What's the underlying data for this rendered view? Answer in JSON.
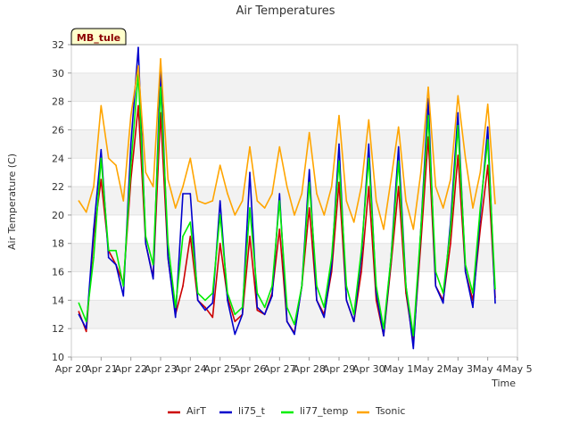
{
  "chart_data": {
    "type": "line",
    "title": "Air Temperatures",
    "xlabel": "Time",
    "ylabel": "Air Temperature (C)",
    "ylim": [
      10,
      32
    ],
    "xlim": [
      0,
      15
    ],
    "yticks": [
      10,
      12,
      14,
      16,
      18,
      20,
      22,
      24,
      26,
      28,
      30,
      32
    ],
    "xticks": [
      {
        "x": 0,
        "label": "Apr 20"
      },
      {
        "x": 1,
        "label": "Apr 21"
      },
      {
        "x": 2,
        "label": "Apr 22"
      },
      {
        "x": 3,
        "label": "Apr 23"
      },
      {
        "x": 4,
        "label": "Apr 24"
      },
      {
        "x": 5,
        "label": "Apr 25"
      },
      {
        "x": 6,
        "label": "Apr 26"
      },
      {
        "x": 7,
        "label": "Apr 27"
      },
      {
        "x": 8,
        "label": "Apr 28"
      },
      {
        "x": 9,
        "label": "Apr 29"
      },
      {
        "x": 10,
        "label": "Apr 30"
      },
      {
        "x": 11,
        "label": "May 1"
      },
      {
        "x": 12,
        "label": "May 2"
      },
      {
        "x": 13,
        "label": "May 3"
      },
      {
        "x": 14,
        "label": "May 4"
      },
      {
        "x": 15,
        "label": "May 5"
      }
    ],
    "grid": "horizontal bands",
    "legend_position": "bottom",
    "site_label": "MB_tule",
    "series": [
      {
        "name": "AirT",
        "color": "#cc0000",
        "x": [
          0.25,
          0.5,
          0.75,
          1.0,
          1.25,
          1.5,
          1.75,
          2.0,
          2.25,
          2.5,
          2.75,
          3.0,
          3.25,
          3.5,
          3.75,
          4.0,
          4.25,
          4.5,
          4.75,
          5.0,
          5.25,
          5.5,
          5.75,
          6.0,
          6.25,
          6.5,
          6.75,
          7.0,
          7.25,
          7.5,
          7.75,
          8.0,
          8.25,
          8.5,
          8.75,
          9.0,
          9.25,
          9.5,
          9.75,
          10.0,
          10.25,
          10.5,
          10.75,
          11.0,
          11.25,
          11.5,
          11.75,
          12.0,
          12.25,
          12.5,
          12.75,
          13.0,
          13.25,
          13.5,
          13.75,
          14.0,
          14.25
        ],
        "y": [
          13.2,
          11.8,
          18.5,
          22.5,
          17.5,
          16.5,
          15.2,
          22.5,
          27.7,
          18.0,
          15.6,
          27.2,
          17.0,
          13.0,
          15.0,
          18.5,
          14.0,
          13.5,
          12.8,
          18.0,
          14.2,
          12.5,
          13.0,
          18.5,
          13.3,
          13.0,
          14.5,
          19.0,
          12.5,
          11.7,
          15.0,
          20.5,
          14.0,
          13.0,
          16.0,
          22.3,
          14.0,
          12.5,
          16.0,
          22.0,
          14.0,
          11.5,
          16.5,
          22.0,
          14.5,
          11.0,
          18.0,
          25.5,
          15.0,
          14.0,
          18.0,
          24.2,
          16.0,
          14.0,
          19.0,
          23.5,
          14.2
        ]
      },
      {
        "name": "li75_t",
        "color": "#0000cc",
        "x": [
          0.25,
          0.5,
          0.75,
          1.0,
          1.25,
          1.5,
          1.75,
          2.0,
          2.25,
          2.5,
          2.75,
          3.0,
          3.25,
          3.5,
          3.75,
          4.0,
          4.25,
          4.5,
          4.75,
          5.0,
          5.25,
          5.5,
          5.75,
          6.0,
          6.25,
          6.5,
          6.75,
          7.0,
          7.25,
          7.5,
          7.75,
          8.0,
          8.25,
          8.5,
          8.75,
          9.0,
          9.25,
          9.5,
          9.75,
          10.0,
          10.25,
          10.5,
          10.75,
          11.0,
          11.25,
          11.5,
          11.75,
          12.0,
          12.25,
          12.5,
          12.75,
          13.0,
          13.25,
          13.5,
          13.75,
          14.0,
          14.25
        ],
        "y": [
          13.0,
          12.0,
          19.0,
          24.6,
          17.0,
          16.5,
          14.3,
          25.0,
          31.8,
          18.0,
          15.5,
          30.5,
          17.0,
          12.8,
          21.5,
          21.5,
          14.0,
          13.3,
          13.8,
          21.0,
          14.0,
          11.6,
          13.0,
          23.0,
          13.5,
          13.0,
          14.3,
          21.5,
          12.5,
          11.6,
          15.0,
          23.2,
          14.0,
          12.8,
          16.5,
          25.0,
          14.0,
          12.5,
          17.0,
          25.0,
          14.5,
          11.5,
          17.0,
          24.8,
          15.0,
          10.6,
          19.0,
          28.2,
          15.0,
          13.8,
          19.5,
          27.2,
          16.0,
          13.5,
          20.0,
          26.2,
          13.8
        ]
      },
      {
        "name": "li77_temp",
        "color": "#00ee00",
        "x": [
          0.25,
          0.5,
          0.75,
          1.0,
          1.25,
          1.5,
          1.75,
          2.0,
          2.25,
          2.5,
          2.75,
          3.0,
          3.25,
          3.5,
          3.75,
          4.0,
          4.25,
          4.5,
          4.75,
          5.0,
          5.25,
          5.5,
          5.75,
          6.0,
          6.25,
          6.5,
          6.75,
          7.0,
          7.25,
          7.5,
          7.75,
          8.0,
          8.25,
          8.5,
          8.75,
          9.0,
          9.25,
          9.5,
          9.75,
          10.0,
          10.25,
          10.5,
          10.75,
          11.0,
          11.25,
          11.5,
          11.75,
          12.0,
          12.25,
          12.5,
          12.75,
          13.0,
          13.25,
          13.5,
          13.75,
          14.0,
          14.25
        ],
        "y": [
          13.8,
          12.5,
          17.0,
          24.0,
          17.5,
          17.5,
          15.0,
          23.5,
          30.0,
          18.5,
          16.5,
          29.0,
          18.0,
          13.5,
          18.5,
          19.5,
          14.5,
          14.0,
          14.5,
          20.0,
          14.5,
          13.0,
          13.5,
          20.5,
          14.5,
          13.5,
          15.0,
          21.0,
          13.5,
          12.3,
          15.0,
          22.3,
          15.0,
          13.5,
          17.0,
          23.8,
          15.0,
          13.0,
          17.5,
          24.0,
          15.0,
          12.0,
          17.0,
          23.8,
          15.0,
          11.5,
          19.0,
          27.0,
          16.0,
          14.5,
          19.0,
          26.3,
          16.5,
          14.5,
          20.5,
          25.3,
          14.8
        ]
      },
      {
        "name": "Tsonic",
        "color": "#ffa500",
        "x": [
          0.25,
          0.5,
          0.75,
          1.0,
          1.25,
          1.5,
          1.75,
          2.0,
          2.25,
          2.5,
          2.75,
          3.0,
          3.25,
          3.5,
          3.75,
          4.0,
          4.25,
          4.5,
          4.75,
          5.0,
          5.25,
          5.5,
          5.75,
          6.0,
          6.25,
          6.5,
          6.75,
          7.0,
          7.25,
          7.5,
          7.75,
          8.0,
          8.25,
          8.5,
          8.75,
          9.0,
          9.25,
          9.5,
          9.75,
          10.0,
          10.25,
          10.5,
          10.75,
          11.0,
          11.25,
          11.5,
          11.75,
          12.0,
          12.25,
          12.5,
          12.75,
          13.0,
          13.25,
          13.5,
          13.75,
          14.0,
          14.25
        ],
        "y": [
          21.0,
          20.2,
          22.0,
          27.7,
          24.0,
          23.5,
          21.0,
          27.0,
          30.5,
          23.0,
          22.0,
          31.0,
          22.5,
          20.5,
          22.0,
          24.0,
          21.0,
          20.8,
          21.0,
          23.5,
          21.5,
          20.0,
          21.0,
          24.8,
          21.0,
          20.5,
          21.5,
          24.8,
          22.0,
          20.0,
          21.5,
          25.8,
          21.5,
          20.0,
          22.0,
          27.0,
          21.0,
          19.5,
          22.0,
          26.7,
          21.0,
          19.0,
          22.5,
          26.2,
          21.0,
          19.0,
          23.0,
          29.0,
          22.0,
          20.5,
          22.5,
          28.4,
          24.0,
          20.5,
          23.0,
          27.8,
          20.8
        ]
      }
    ]
  }
}
